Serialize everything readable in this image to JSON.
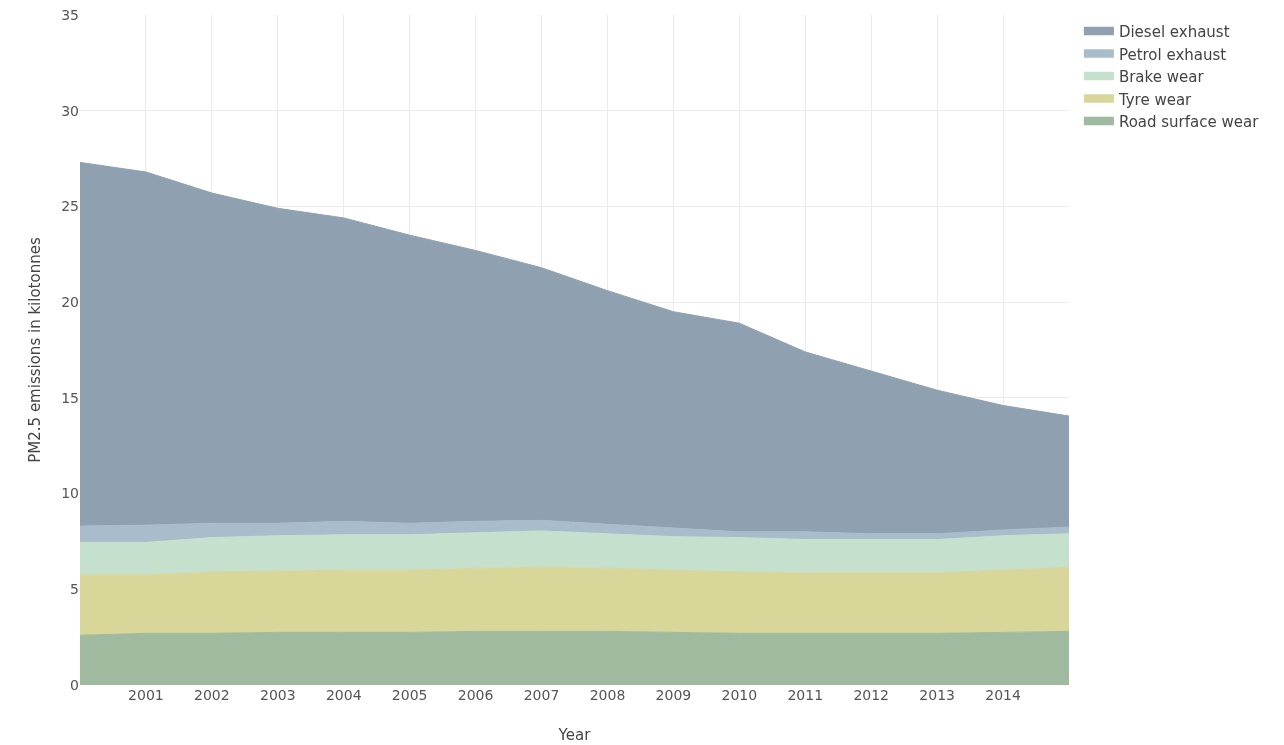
{
  "chart_data": {
    "type": "area",
    "stacked": true,
    "xlabel": "Year",
    "ylabel": "PM2.5 emissions in kilotonnes",
    "x": [
      2000,
      2001,
      2002,
      2003,
      2004,
      2005,
      2006,
      2007,
      2008,
      2009,
      2010,
      2011,
      2012,
      2013,
      2014,
      2015
    ],
    "series": [
      {
        "name": "Road surface wear",
        "color": "#9fba9f",
        "values": [
          2.6,
          2.7,
          2.7,
          2.75,
          2.75,
          2.75,
          2.8,
          2.8,
          2.8,
          2.75,
          2.7,
          2.7,
          2.7,
          2.7,
          2.75,
          2.8
        ]
      },
      {
        "name": "Tyre wear",
        "color": "#d9d69a",
        "values": [
          3.15,
          3.05,
          3.2,
          3.2,
          3.25,
          3.25,
          3.3,
          3.35,
          3.3,
          3.25,
          3.2,
          3.15,
          3.15,
          3.15,
          3.25,
          3.35
        ]
      },
      {
        "name": "Brake wear",
        "color": "#c5e0cc",
        "values": [
          1.7,
          1.7,
          1.8,
          1.85,
          1.85,
          1.85,
          1.85,
          1.9,
          1.8,
          1.75,
          1.8,
          1.75,
          1.75,
          1.75,
          1.8,
          1.75
        ]
      },
      {
        "name": "Petrol exhaust",
        "color": "#a9bccb",
        "values": [
          0.85,
          0.9,
          0.75,
          0.65,
          0.7,
          0.6,
          0.6,
          0.55,
          0.5,
          0.45,
          0.3,
          0.4,
          0.3,
          0.3,
          0.3,
          0.35
        ]
      },
      {
        "name": "Diesel exhaust",
        "color": "#8fa1b0",
        "values": [
          19.0,
          18.45,
          17.25,
          16.45,
          15.85,
          15.05,
          14.15,
          13.2,
          12.2,
          11.3,
          10.9,
          9.4,
          8.5,
          7.5,
          6.5,
          5.8
        ]
      }
    ],
    "xlim": [
      2000,
      2015
    ],
    "xticks": [
      2001,
      2002,
      2003,
      2004,
      2005,
      2006,
      2007,
      2008,
      2009,
      2010,
      2011,
      2012,
      2013,
      2014
    ],
    "ylim": [
      0,
      35
    ],
    "yticks": [
      0,
      5,
      10,
      15,
      20,
      25,
      30,
      35
    ],
    "grid": true,
    "legend": "top right"
  }
}
